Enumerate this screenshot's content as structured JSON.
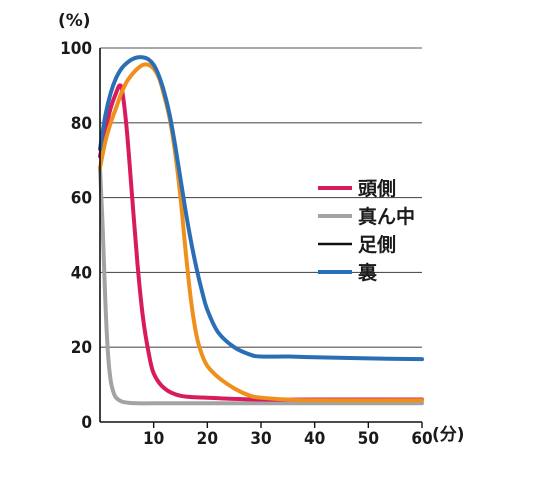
{
  "chart_data": {
    "type": "line",
    "ylabel": "(%)",
    "xlabel": "(分)",
    "xlim": [
      0,
      60
    ],
    "ylim": [
      0,
      100
    ],
    "xticks": [
      10,
      20,
      30,
      40,
      50,
      60
    ],
    "yticks": [
      0,
      20,
      40,
      60,
      80,
      100
    ],
    "grid": "horizontal",
    "legend_position": "right",
    "series": [
      {
        "name": "頭側",
        "color": "#d81b5e",
        "x": [
          0,
          1,
          2,
          3,
          3.7,
          4.2,
          5,
          6,
          7,
          8,
          9,
          10,
          12,
          15,
          20,
          30,
          40,
          60
        ],
        "y": [
          71,
          78,
          84,
          88,
          90,
          88,
          78,
          60,
          42,
          28,
          19,
          13,
          9,
          7,
          6.5,
          6,
          6,
          6
        ]
      },
      {
        "name": "真ん中",
        "color": "#a3a3a3",
        "x": [
          0,
          0.5,
          1,
          1.5,
          2,
          2.5,
          3,
          4,
          5,
          7,
          10,
          20,
          40,
          60
        ],
        "y": [
          68,
          52,
          32,
          18,
          11,
          8,
          6.5,
          5.5,
          5.2,
          5,
          5,
          5,
          5,
          5
        ]
      },
      {
        "name": "足側",
        "color": "#111111",
        "x": [],
        "y": []
      },
      {
        "name": "裏",
        "color": "#2a6fb6",
        "x": [
          0,
          1,
          2,
          3,
          4,
          5,
          6,
          7,
          8,
          9,
          10,
          11,
          12,
          13,
          14,
          15,
          16,
          17,
          18,
          19,
          20,
          22,
          25,
          28,
          30,
          35,
          40,
          50,
          60
        ],
        "y": [
          73,
          82,
          88,
          92,
          94.5,
          96,
          97,
          97.5,
          97.5,
          97,
          95.5,
          92.5,
          88,
          82,
          74,
          65,
          56,
          48,
          41,
          35,
          30,
          24,
          20,
          18,
          17.5,
          17.5,
          17.3,
          17,
          16.8
        ]
      },
      {
        "name": "",
        "color": "#f0901c",
        "x": [
          0,
          1,
          2,
          3,
          4,
          5,
          6,
          7,
          8,
          9,
          10,
          11,
          12,
          13,
          14,
          15,
          16,
          17,
          18,
          19,
          20,
          22,
          25,
          28,
          30,
          35,
          40,
          60
        ],
        "y": [
          68,
          75,
          80,
          84,
          88,
          91,
          93,
          94.5,
          95.5,
          95.5,
          94.5,
          92,
          87,
          81,
          72,
          60,
          45,
          32,
          23,
          18,
          15,
          12,
          9,
          7,
          6.5,
          6,
          5.8,
          5.8
        ]
      }
    ],
    "legend": [
      {
        "label": "頭側",
        "color": "#d81b5e"
      },
      {
        "label": "真ん中",
        "color": "#a3a3a3"
      },
      {
        "label": "足側",
        "color": "#111111"
      },
      {
        "label": "裏",
        "color": "#2a6fb6"
      }
    ]
  }
}
